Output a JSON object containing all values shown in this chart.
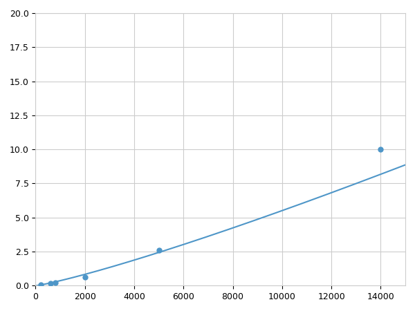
{
  "x": [
    200,
    600,
    800,
    2000,
    5000,
    14000
  ],
  "y": [
    0.08,
    0.18,
    0.22,
    0.65,
    2.6,
    10.0
  ],
  "line_color": "#4e96c8",
  "marker_color": "#4e96c8",
  "marker_size": 5,
  "xlim": [
    0,
    15000
  ],
  "ylim": [
    0,
    20
  ],
  "xticks": [
    0,
    2000,
    4000,
    6000,
    8000,
    10000,
    12000,
    14000
  ],
  "yticks": [
    0.0,
    2.5,
    5.0,
    7.5,
    10.0,
    12.5,
    15.0,
    17.5,
    20.0
  ],
  "grid_color": "#cccccc",
  "background_color": "#ffffff",
  "figsize": [
    6.0,
    4.5
  ],
  "dpi": 100
}
